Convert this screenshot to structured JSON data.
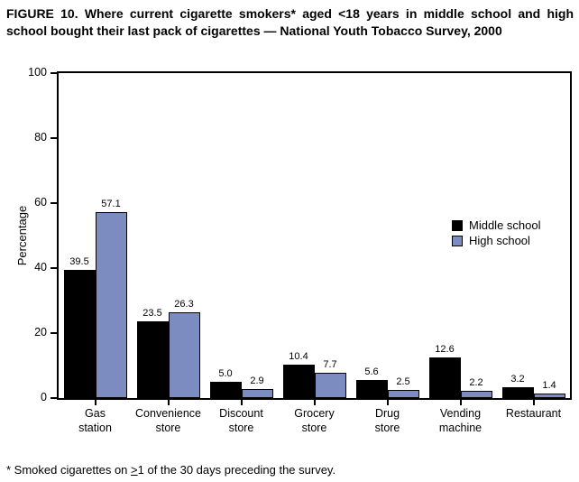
{
  "figure": {
    "title": "FIGURE 10. Where current cigarette smokers* aged <18 years in middle school and high school bought their last pack of cigarettes — National Youth Tobacco Survey, 2000",
    "footnote": {
      "prefix": "* Smoked cigarettes on ",
      "geq_symbol": ">",
      "suffix": "1 of the 30 days preceding the survey."
    }
  },
  "chart_data": {
    "type": "bar",
    "title": "",
    "xlabel": "",
    "ylabel": "Percentage",
    "ylim": [
      0,
      100
    ],
    "yticks": [
      0,
      20,
      40,
      60,
      80,
      100
    ],
    "grid": false,
    "legend_position": "inside-right-middle",
    "categories": [
      "Gas station",
      "Convenience store",
      "Discount store",
      "Grocery store",
      "Drug store",
      "Vending machine",
      "Restaurant"
    ],
    "category_label_lines": [
      [
        "Gas",
        "station"
      ],
      [
        "Convenience",
        "store"
      ],
      [
        "Discount",
        "store"
      ],
      [
        "Grocery",
        "store"
      ],
      [
        "Drug",
        "store"
      ],
      [
        "Vending",
        "machine"
      ],
      [
        "Restaurant"
      ]
    ],
    "series": [
      {
        "name": "Middle school",
        "color": "#000000",
        "values": [
          39.5,
          23.5,
          5.0,
          10.4,
          5.6,
          12.6,
          3.2
        ]
      },
      {
        "name": "High school",
        "color": "#7d8cc0",
        "values": [
          57.1,
          26.3,
          2.9,
          7.7,
          2.5,
          2.2,
          1.4
        ]
      }
    ],
    "value_label_decimals": 1
  }
}
